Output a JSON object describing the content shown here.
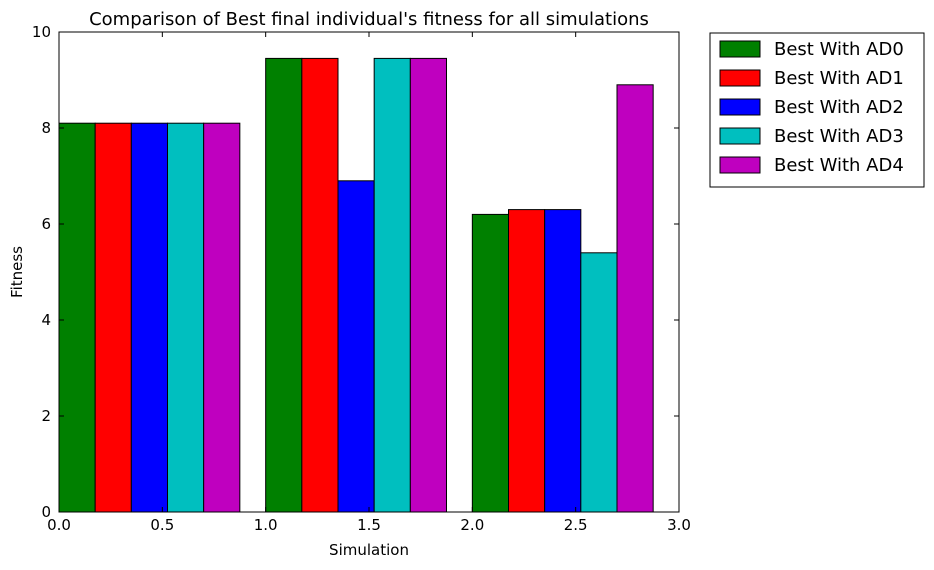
{
  "chart_data": {
    "type": "bar",
    "title": "Comparison of Best final individual's fitness for all simulations",
    "xlabel": "Simulation",
    "ylabel": "Fitness",
    "xlim": [
      0.0,
      3.0
    ],
    "ylim": [
      0,
      10
    ],
    "xticks": [
      "0.0",
      "0.5",
      "1.0",
      "1.5",
      "2.0",
      "2.5",
      "3.0"
    ],
    "yticks": [
      "0",
      "2",
      "4",
      "6",
      "8",
      "10"
    ],
    "group_starts": [
      0,
      1,
      2
    ],
    "bar_width": 0.175,
    "legend_position": "outside-top-right",
    "grid": false,
    "series": [
      {
        "name": "Best With AD0",
        "color": "#008000",
        "values": [
          8.1,
          9.45,
          6.2
        ]
      },
      {
        "name": "Best With AD1",
        "color": "#ff0000",
        "values": [
          8.1,
          9.45,
          6.3
        ]
      },
      {
        "name": "Best With AD2",
        "color": "#0000ff",
        "values": [
          8.1,
          6.9,
          6.3
        ]
      },
      {
        "name": "Best With AD3",
        "color": "#00bfbf",
        "values": [
          8.1,
          9.45,
          5.4
        ]
      },
      {
        "name": "Best With AD4",
        "color": "#bf00bf",
        "values": [
          8.1,
          9.45,
          8.9
        ]
      }
    ]
  }
}
